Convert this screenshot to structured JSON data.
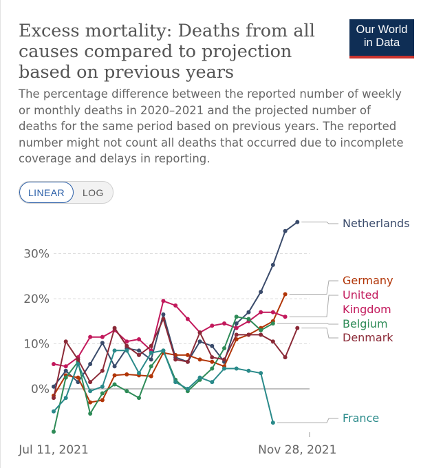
{
  "header": {
    "title": "Excess mortality: Deaths from all causes compared to projection based on previous years",
    "subtitle": "The percentage difference between the reported number of weekly or monthly deaths in 2020–2021 and the projected number of deaths for the same period based on previous years. The reported number might not count all deaths that occurred due to incomplete coverage and delays in reporting.",
    "logo_line1": "Our World",
    "logo_line2": "in Data"
  },
  "controls": {
    "linear_label": "LINEAR",
    "log_label": "LOG",
    "selected": "LINEAR"
  },
  "chart_data": {
    "type": "line",
    "x_tick_labels": [
      "Jul 11, 2021",
      "Nov 28, 2021"
    ],
    "x_tick_index": [
      0,
      20
    ],
    "y_ticks": [
      0,
      10,
      20,
      30
    ],
    "y_tick_labels": [
      "0%",
      "10%",
      "20%",
      "30%"
    ],
    "ylim": [
      -10,
      38
    ],
    "xlim": [
      0,
      21
    ],
    "grid": "horizontal dashed",
    "legend": "right, end-of-line labels",
    "series": [
      {
        "name": "Netherlands",
        "color": "#3a4b6b",
        "x": [
          0,
          1,
          2,
          3,
          4,
          5,
          6,
          7,
          8,
          9,
          10,
          11,
          12,
          13,
          14,
          15,
          16,
          17,
          18,
          19,
          20,
          21
        ],
        "values": [
          0.5,
          4.0,
          1.5,
          5.5,
          10.2,
          5.0,
          9.0,
          8.5,
          6.5,
          16.5,
          7.0,
          6.0,
          10.5,
          9.5,
          6.0,
          14.5,
          17.0,
          21.5,
          27.5,
          35.0,
          37.0,
          null
        ]
      },
      {
        "name": "Germany",
        "color": "#b13507",
        "x": [
          0,
          1,
          2,
          3,
          4,
          5,
          6,
          7,
          8,
          9,
          10,
          11,
          12,
          13,
          14,
          15,
          16,
          17,
          18,
          19,
          20
        ],
        "values": [
          -1.5,
          3.0,
          2.5,
          -3.0,
          -2.5,
          3.0,
          3.2,
          3.0,
          2.8,
          8.0,
          7.5,
          7.5,
          6.5,
          6.0,
          5.0,
          11.0,
          12.0,
          13.5,
          15.0,
          21.0,
          null
        ]
      },
      {
        "name": "United Kingdom",
        "color": "#c2185b",
        "x": [
          0,
          1,
          2,
          3,
          4,
          5,
          6,
          7,
          8,
          9,
          10,
          11,
          12,
          13,
          14,
          15,
          16,
          17,
          18,
          19,
          20
        ],
        "values": [
          5.5,
          5.0,
          7.0,
          11.5,
          11.5,
          13.0,
          10.5,
          11.0,
          8.5,
          19.5,
          18.5,
          15.5,
          12.5,
          14.0,
          14.5,
          13.5,
          15.0,
          17.0,
          17.0,
          16.0,
          null
        ]
      },
      {
        "name": "Belgium",
        "color": "#2e8b57",
        "x": [
          0,
          1,
          2,
          3,
          4,
          5,
          6,
          7,
          8,
          9,
          10,
          11,
          12,
          13,
          14,
          15,
          16,
          17,
          18,
          19
        ],
        "values": [
          -9.5,
          2.5,
          6.0,
          -5.5,
          -1.0,
          1.0,
          -0.5,
          -2.0,
          5.0,
          8.5,
          2.0,
          -0.5,
          2.0,
          4.5,
          9.0,
          16.0,
          15.5,
          13.0,
          14.5,
          null
        ]
      },
      {
        "name": "Denmark",
        "color": "#8b2a37",
        "x": [
          0,
          1,
          2,
          3,
          4,
          5,
          6,
          7,
          8,
          9,
          10,
          11,
          12,
          13,
          14,
          15,
          16,
          17,
          18,
          19,
          20
        ],
        "values": [
          -2.0,
          10.5,
          6.5,
          1.5,
          4.0,
          13.5,
          9.5,
          7.5,
          9.5,
          15.5,
          6.5,
          6.0,
          12.5,
          7.0,
          6.5,
          12.0,
          12.0,
          12.0,
          10.5,
          7.0,
          13.5
        ]
      },
      {
        "name": "France",
        "color": "#2a8a8a",
        "x": [
          0,
          1,
          2,
          3,
          4,
          5,
          6,
          7,
          8,
          9,
          10,
          11,
          12,
          13,
          14,
          15,
          16,
          17,
          18
        ],
        "values": [
          -5.0,
          -2.0,
          5.5,
          -0.5,
          0.5,
          8.5,
          8.5,
          3.5,
          8.0,
          8.5,
          1.5,
          0.0,
          2.5,
          1.5,
          4.5,
          4.5,
          4.0,
          3.5,
          -7.5
        ]
      }
    ]
  }
}
